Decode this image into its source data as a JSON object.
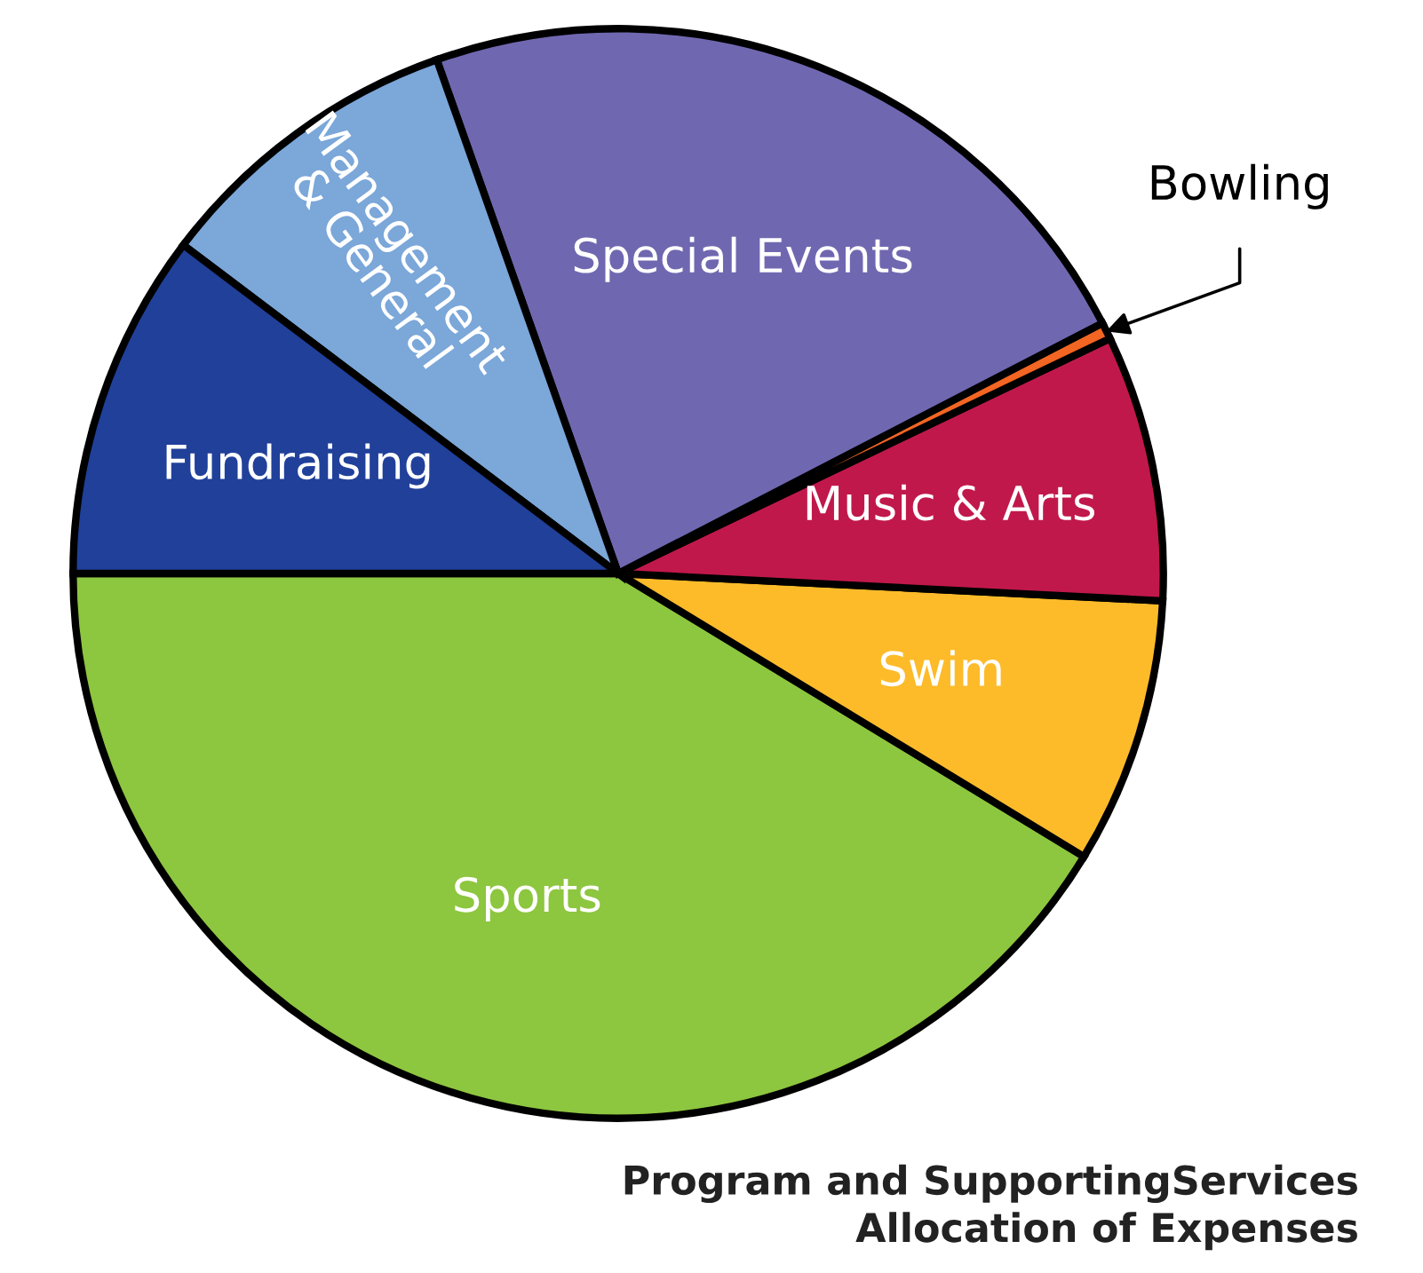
{
  "chart_data": {
    "type": "pie",
    "title": "Program and SupportingServices\nAllocation of Expenses",
    "categories": [
      "Sports",
      "Swim",
      "Music & Arts",
      "Bowling",
      "Special Events",
      "Management\n& General",
      "Fundraising"
    ],
    "values": [
      41.3,
      7.9,
      7.9,
      0.5,
      22.8,
      9.3,
      10.3
    ],
    "colors": [
      "#8dc63f",
      "#fdbb2a",
      "#c1184b",
      "#f26522",
      "#6f68b0",
      "#7ba7d9",
      "#20409a"
    ]
  }
}
